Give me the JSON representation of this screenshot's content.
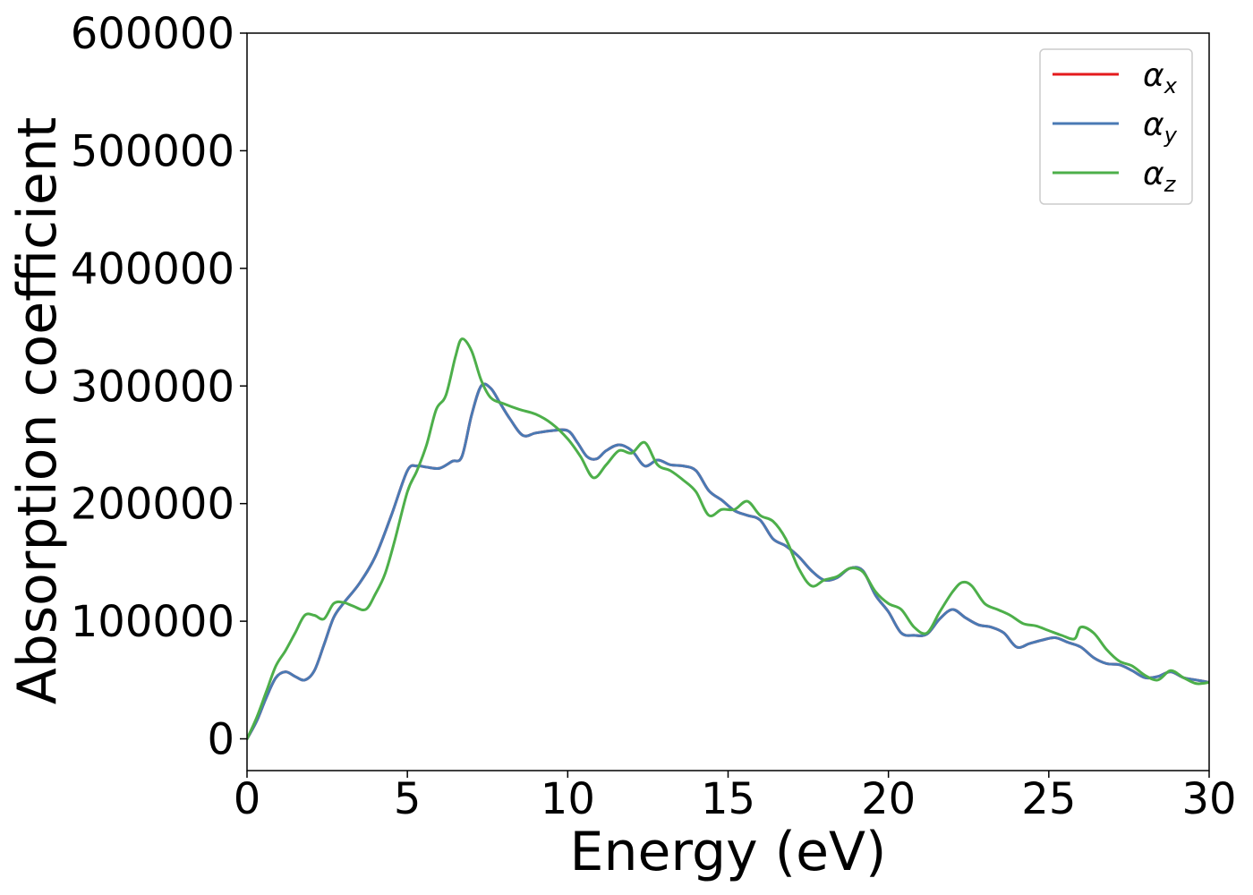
{
  "chart_data": {
    "type": "line",
    "xlabel": "Energy (eV)",
    "ylabel": "Absorption coefficient",
    "xlim": [
      0,
      30
    ],
    "ylim": [
      -27000,
      600000
    ],
    "xticks": [
      0,
      5,
      10,
      15,
      20,
      25,
      30
    ],
    "yticks": [
      0,
      100000,
      200000,
      300000,
      400000,
      500000,
      600000
    ],
    "grid": false,
    "legend_position": "top-right",
    "series": [
      {
        "name": "α_x",
        "label_main": "α",
        "label_sub": "x",
        "color": "#e41a1c",
        "x": [
          0,
          0.3,
          0.6,
          0.9,
          1.2,
          1.5,
          1.8,
          2.1,
          2.4,
          2.7,
          3.0,
          3.5,
          4.0,
          4.5,
          5.0,
          5.3,
          5.6,
          6.0,
          6.4,
          6.7,
          7.0,
          7.3,
          7.6,
          7.9,
          8.2,
          8.6,
          9.0,
          9.5,
          10.0,
          10.3,
          10.6,
          10.9,
          11.2,
          11.6,
          12.0,
          12.4,
          12.8,
          13.2,
          13.6,
          14.0,
          14.4,
          14.8,
          15.2,
          15.6,
          16.0,
          16.4,
          16.8,
          17.2,
          17.6,
          18.0,
          18.4,
          18.8,
          19.2,
          19.6,
          20.0,
          20.4,
          20.8,
          21.2,
          21.6,
          22.0,
          22.4,
          22.8,
          23.2,
          23.6,
          24.0,
          24.4,
          24.8,
          25.2,
          25.6,
          26.0,
          26.4,
          26.8,
          27.2,
          27.6,
          28.0,
          28.4,
          28.8,
          29.2,
          29.6,
          30.0
        ],
        "y": [
          0,
          15000,
          35000,
          52000,
          57000,
          53000,
          50000,
          58000,
          80000,
          103000,
          115000,
          132000,
          155000,
          190000,
          228000,
          232000,
          231000,
          230000,
          236000,
          240000,
          275000,
          300000,
          298000,
          285000,
          272000,
          258000,
          260000,
          262000,
          262000,
          252000,
          240000,
          238000,
          245000,
          250000,
          245000,
          232000,
          237000,
          233000,
          232000,
          228000,
          211000,
          203000,
          194000,
          190000,
          186000,
          170000,
          164000,
          155000,
          143000,
          135000,
          137000,
          145000,
          143000,
          122000,
          108000,
          90000,
          88000,
          89000,
          102000,
          110000,
          103000,
          97000,
          95000,
          90000,
          78000,
          81000,
          84000,
          86000,
          82000,
          78000,
          69000,
          64000,
          63000,
          58000,
          52000,
          53000,
          57000,
          52000,
          50000,
          48000
        ]
      },
      {
        "name": "α_y",
        "label_main": "α",
        "label_sub": "y",
        "color": "#4a7ab4",
        "x": [
          0,
          0.3,
          0.6,
          0.9,
          1.2,
          1.5,
          1.8,
          2.1,
          2.4,
          2.7,
          3.0,
          3.5,
          4.0,
          4.5,
          5.0,
          5.3,
          5.6,
          6.0,
          6.4,
          6.7,
          7.0,
          7.3,
          7.6,
          7.9,
          8.2,
          8.6,
          9.0,
          9.5,
          10.0,
          10.3,
          10.6,
          10.9,
          11.2,
          11.6,
          12.0,
          12.4,
          12.8,
          13.2,
          13.6,
          14.0,
          14.4,
          14.8,
          15.2,
          15.6,
          16.0,
          16.4,
          16.8,
          17.2,
          17.6,
          18.0,
          18.4,
          18.8,
          19.2,
          19.6,
          20.0,
          20.4,
          20.8,
          21.2,
          21.6,
          22.0,
          22.4,
          22.8,
          23.2,
          23.6,
          24.0,
          24.4,
          24.8,
          25.2,
          25.6,
          26.0,
          26.4,
          26.8,
          27.2,
          27.6,
          28.0,
          28.4,
          28.8,
          29.2,
          29.6,
          30.0
        ],
        "y": [
          0,
          15000,
          35000,
          52000,
          57000,
          53000,
          50000,
          58000,
          80000,
          103000,
          115000,
          132000,
          155000,
          190000,
          228000,
          232000,
          231000,
          230000,
          236000,
          240000,
          275000,
          300000,
          298000,
          285000,
          272000,
          258000,
          260000,
          262000,
          262000,
          252000,
          240000,
          238000,
          245000,
          250000,
          245000,
          232000,
          237000,
          233000,
          232000,
          228000,
          211000,
          203000,
          194000,
          190000,
          186000,
          170000,
          164000,
          155000,
          143000,
          135000,
          137000,
          145000,
          143000,
          122000,
          108000,
          90000,
          88000,
          89000,
          102000,
          110000,
          103000,
          97000,
          95000,
          90000,
          78000,
          81000,
          84000,
          86000,
          82000,
          78000,
          69000,
          64000,
          63000,
          58000,
          52000,
          53000,
          57000,
          52000,
          50000,
          48000
        ]
      },
      {
        "name": "α_z",
        "label_main": "α",
        "label_sub": "z",
        "color": "#4daf4a",
        "x": [
          0,
          0.3,
          0.6,
          0.9,
          1.2,
          1.5,
          1.8,
          2.1,
          2.4,
          2.7,
          3.0,
          3.3,
          3.7,
          4.0,
          4.3,
          4.6,
          5.0,
          5.3,
          5.6,
          5.9,
          6.2,
          6.5,
          6.7,
          7.0,
          7.3,
          7.6,
          8.0,
          8.5,
          9.0,
          9.5,
          10.0,
          10.4,
          10.8,
          11.2,
          11.6,
          12.0,
          12.4,
          12.8,
          13.2,
          13.6,
          14.0,
          14.4,
          14.8,
          15.2,
          15.6,
          16.0,
          16.4,
          16.8,
          17.2,
          17.6,
          18.0,
          18.4,
          18.8,
          19.2,
          19.6,
          20.0,
          20.4,
          20.8,
          21.2,
          21.6,
          22.0,
          22.3,
          22.6,
          23.0,
          23.4,
          23.8,
          24.2,
          24.6,
          25.0,
          25.4,
          25.8,
          26.0,
          26.4,
          26.8,
          27.2,
          27.6,
          28.0,
          28.4,
          28.8,
          29.2,
          29.6,
          30.0
        ],
        "y": [
          0,
          18000,
          40000,
          62000,
          75000,
          90000,
          105000,
          105000,
          102000,
          115000,
          116000,
          113000,
          110000,
          123000,
          140000,
          168000,
          210000,
          228000,
          250000,
          280000,
          292000,
          325000,
          340000,
          330000,
          305000,
          290000,
          285000,
          280000,
          276000,
          268000,
          255000,
          240000,
          222000,
          233000,
          245000,
          243000,
          252000,
          233000,
          228000,
          220000,
          210000,
          190000,
          195000,
          195000,
          202000,
          190000,
          185000,
          170000,
          145000,
          130000,
          135000,
          138000,
          145000,
          142000,
          125000,
          115000,
          110000,
          95000,
          90000,
          108000,
          125000,
          133000,
          130000,
          115000,
          110000,
          105000,
          98000,
          96000,
          92000,
          88000,
          85000,
          95000,
          90000,
          76000,
          66000,
          62000,
          54000,
          50000,
          58000,
          52000,
          47000,
          48000
        ]
      }
    ]
  }
}
